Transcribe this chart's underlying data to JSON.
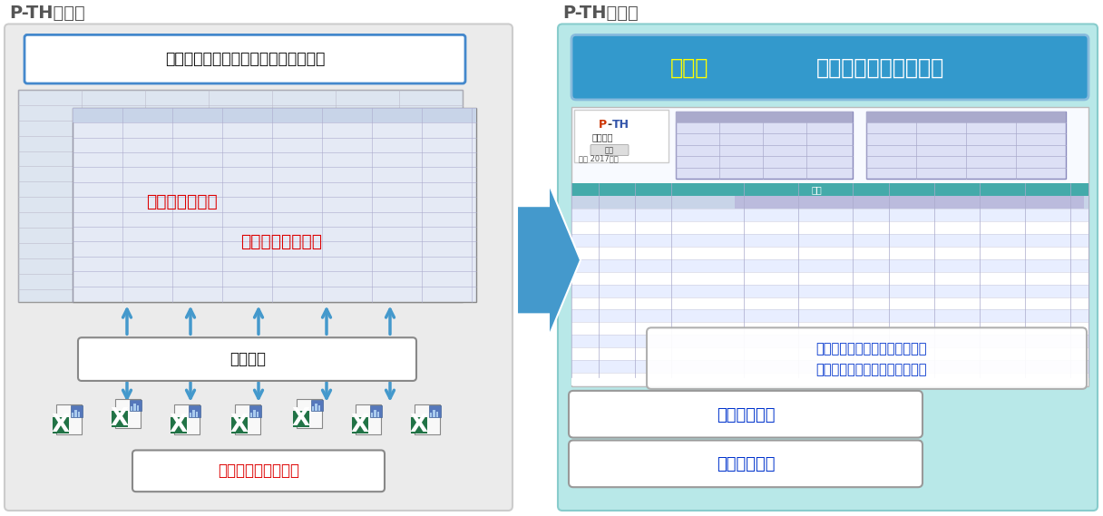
{
  "bg_color": "#ffffff",
  "left_panel_bg": "#ebebeb",
  "left_panel_border": "#cccccc",
  "right_panel_bg": "#b8e8e8",
  "right_panel_border": "#88cccc",
  "left_title": "P-TH導入前",
  "right_title": "P-TH導入後",
  "title_color": "#555555",
  "title_fontsize": 14,
  "left_box_text": "集計表や評価会議資料を手作業で作成",
  "left_box_border": "#4488cc",
  "left_label1": "集計作業の手間",
  "left_label1_color": "#dd0000",
  "left_label2": "転記ミスのリスク",
  "left_label2_color": "#dd0000",
  "tenki_box_text": "転記作業",
  "deadline_text": "締切ギリギリで提出",
  "deadline_color": "#dd0000",
  "right_headline_bg": "#3399cc",
  "right_headline_text1": "集計表",
  "right_headline_text2": "をボタン１つで即作成",
  "right_headline_color1": "#ffff00",
  "right_headline_color2": "#ffffff",
  "bullet1": "・提出締切前に進捗状況を把握",
  "bullet2": "・登録されたら即時データ反映",
  "bullet_color": "#0033cc",
  "benefit1": "作業時間削減",
  "benefit2": "転記ミス削減",
  "benefit_color": "#0033cc",
  "benefit_box_border": "#999999",
  "arrow_color": "#4499cc",
  "screen_bg": "#f5f5ff",
  "screen_header_bg": "#c0ccee",
  "screen_row1": "#e8eeff",
  "screen_row2": "#ffffff",
  "screen_teal_header": "#44bbbb",
  "screen_purple_header": "#9999cc",
  "excel_green": "#217346",
  "excel_white": "#ffffff",
  "bar_blue": "#5577bb"
}
